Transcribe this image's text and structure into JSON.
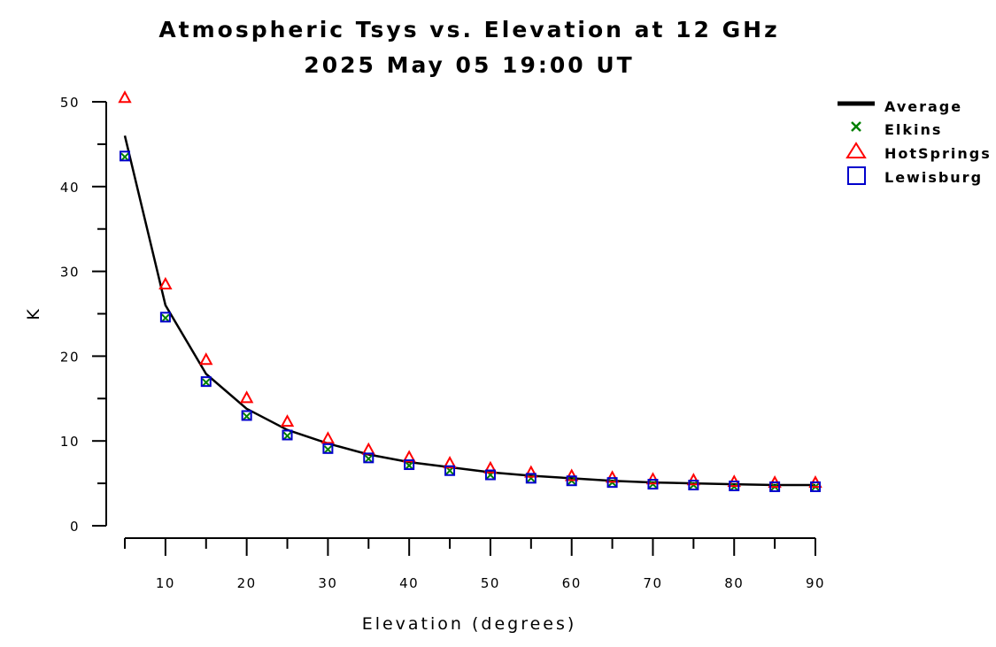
{
  "chart_data": {
    "type": "line",
    "title": "Atmospheric Tsys vs. Elevation at 12 GHz",
    "subtitle": "2025 May 05 19:00 UT",
    "xlabel": "Elevation (degrees)",
    "ylabel": "K",
    "xlim": [
      5,
      90
    ],
    "ylim": [
      0,
      50
    ],
    "x_ticks": [
      10,
      20,
      30,
      40,
      50,
      60,
      70,
      80,
      90
    ],
    "y_ticks": [
      0,
      10,
      20,
      30,
      40,
      50
    ],
    "grid": false,
    "legend_position": "top-right",
    "x": [
      5,
      10,
      15,
      20,
      25,
      30,
      35,
      40,
      45,
      50,
      55,
      60,
      65,
      70,
      75,
      80,
      85,
      90
    ],
    "series": [
      {
        "name": "Average",
        "style": "line",
        "color": "#000000",
        "values": [
          46.0,
          26.0,
          17.9,
          13.8,
          11.3,
          9.7,
          8.4,
          7.5,
          6.9,
          6.3,
          5.9,
          5.6,
          5.3,
          5.1,
          5.0,
          4.9,
          4.8,
          4.8
        ]
      },
      {
        "name": "Elkins",
        "style": "x",
        "color": "#008000",
        "values": [
          43.5,
          24.5,
          16.9,
          12.9,
          10.6,
          9.0,
          7.9,
          7.1,
          6.5,
          6.0,
          5.6,
          5.3,
          5.1,
          4.9,
          4.8,
          4.6,
          4.6,
          4.6
        ]
      },
      {
        "name": "HotSprings",
        "style": "triangle",
        "color": "#ff0000",
        "values": [
          50.5,
          28.5,
          19.6,
          15.1,
          12.3,
          10.3,
          9.0,
          8.1,
          7.4,
          6.8,
          6.3,
          5.9,
          5.7,
          5.5,
          5.4,
          5.2,
          5.1,
          5.1
        ]
      },
      {
        "name": "Lewisburg",
        "style": "square",
        "color": "#0000cc",
        "values": [
          43.6,
          24.6,
          17.0,
          13.0,
          10.7,
          9.1,
          8.0,
          7.2,
          6.5,
          6.0,
          5.6,
          5.3,
          5.1,
          4.9,
          4.8,
          4.7,
          4.6,
          4.6
        ]
      }
    ]
  }
}
